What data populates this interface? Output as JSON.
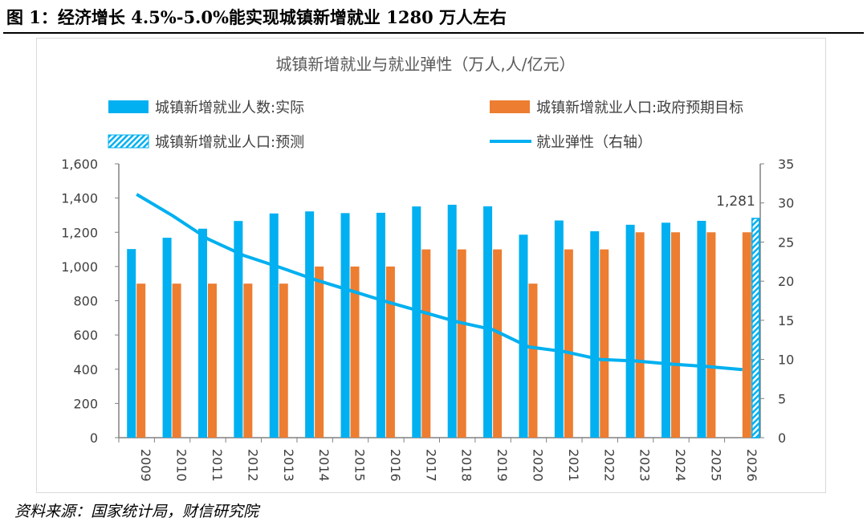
{
  "figure_title": "图 1：经济增长 4.5%-5.0%能实现城镇新增就业 1280 万人左右",
  "source": "资料来源：国家统计局，财信研究院",
  "colors": {
    "actual": "#00B0F0",
    "target": "#ED7D31",
    "elasticity": "#00B0F0"
  },
  "chart_data": {
    "type": "bar+line",
    "title": "城镇新增就业与就业弹性（万人,人/亿元）",
    "categories": [
      "2009",
      "2010",
      "2011",
      "2012",
      "2013",
      "2014",
      "2015",
      "2016",
      "2017",
      "2018",
      "2019",
      "2020",
      "2021",
      "2022",
      "2023",
      "2024",
      "2025",
      "2026"
    ],
    "series": [
      {
        "name": "城镇新增就业人数:实际",
        "kind": "bar",
        "axis": "left",
        "values": [
          1102,
          1168,
          1221,
          1266,
          1310,
          1322,
          1312,
          1314,
          1351,
          1361,
          1352,
          1186,
          1269,
          1206,
          1244,
          1256,
          1267,
          null
        ]
      },
      {
        "name": "城镇新增就业人口:政府预期目标",
        "kind": "bar",
        "axis": "left",
        "values": [
          900,
          900,
          900,
          900,
          900,
          1000,
          1000,
          1000,
          1100,
          1100,
          1100,
          900,
          1100,
          1100,
          1200,
          1200,
          1200,
          1200
        ]
      },
      {
        "name": "城镇新增就业人口:预测",
        "kind": "bar-hatched",
        "axis": "left",
        "values": [
          null,
          null,
          null,
          null,
          null,
          null,
          null,
          null,
          null,
          null,
          null,
          null,
          null,
          null,
          null,
          null,
          null,
          1281
        ]
      },
      {
        "name": "就业弹性（右轴）",
        "kind": "line",
        "axis": "right",
        "values": [
          31.1,
          28.4,
          25.4,
          23.3,
          21.8,
          20.2,
          18.8,
          17.4,
          16.1,
          14.8,
          13.8,
          11.6,
          11.0,
          10.0,
          9.8,
          9.4,
          9.1,
          8.7
        ]
      }
    ],
    "data_labels": [
      {
        "category": "2026",
        "text": "1,281"
      }
    ],
    "y_left": {
      "range": [
        0,
        1600
      ],
      "ticks": [
        "0",
        "200",
        "400",
        "600",
        "800",
        "1,000",
        "1,200",
        "1,400",
        "1,600"
      ]
    },
    "y_right": {
      "range": [
        0,
        35
      ],
      "ticks": [
        "0",
        "5",
        "10",
        "15",
        "20",
        "25",
        "30",
        "35"
      ]
    },
    "grid": false,
    "legend_position": "top"
  }
}
